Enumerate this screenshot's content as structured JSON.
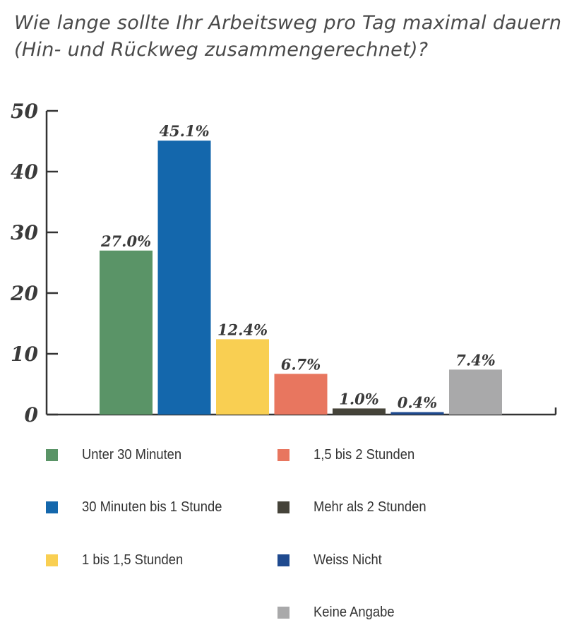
{
  "chart_data": {
    "type": "bar",
    "title": "Wie lange sollte Ihr Arbeitsweg pro Tag maximal dauern (Hin- und Rückweg zusammengerechnet)?",
    "categories": [
      "Unter 30 Minuten",
      "30 Minuten bis 1 Stunde",
      "1 bis 1,5 Stunden",
      "1,5 bis 2 Stunden",
      "Mehr als 2 Stunden",
      "Weiss Nicht",
      "Keine Angabe"
    ],
    "values": [
      27.0,
      45.1,
      12.4,
      6.7,
      1.0,
      0.4,
      7.4
    ],
    "data_labels": [
      "27.0%",
      "45.1%",
      "12.4%",
      "6.7%",
      "1.0%",
      "0.4%",
      "7.4%"
    ],
    "colors": [
      "#5a9467",
      "#1467ac",
      "#f9cf52",
      "#e8765f",
      "#454339",
      "#1f4a8f",
      "#a9a9aa"
    ],
    "ylim": [
      0,
      50
    ],
    "yticks": [
      "0",
      "10",
      "20",
      "30",
      "40",
      "50"
    ],
    "xlabel": "",
    "ylabel": "",
    "grid": false,
    "legend_placement": "bottom, two columns"
  }
}
